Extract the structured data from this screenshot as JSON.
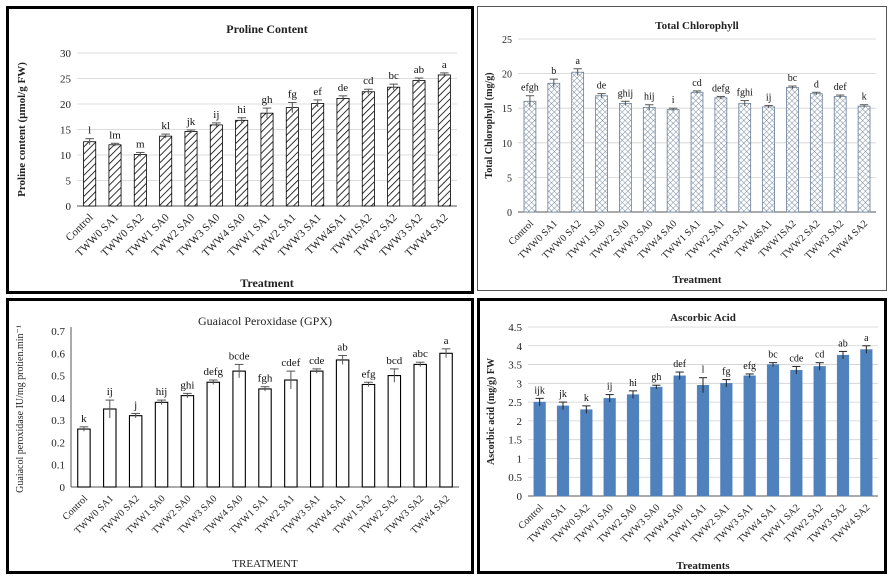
{
  "chart_data": [
    {
      "type": "bar",
      "title": "Proline Content",
      "ylabel": "Proline content (µmol/g FW)",
      "xlabel": "Treatment",
      "ylim": [
        0,
        30
      ],
      "yticks": [
        0,
        5,
        10,
        15,
        20,
        25,
        30
      ],
      "grid": true,
      "pattern": "hatch",
      "categories": [
        "Control",
        "TWW0 SA1",
        "TWW0 SA2",
        "TWW1 SA0",
        "TWW2 SA0",
        "TWW3 SA0",
        "TWW4 SA0",
        "TWW1 SA1",
        "TWW2 SA1",
        "TWW3 SA1",
        "TWW4SA1",
        "TWW1SA2",
        "TWW2 SA2",
        "TWW3 SA2",
        "TWW4 SA2"
      ],
      "values": [
        12.6,
        12.0,
        10.1,
        13.7,
        14.6,
        15.9,
        16.8,
        18.2,
        19.3,
        20.1,
        21.1,
        22.4,
        23.3,
        24.6,
        25.7
      ],
      "errors": [
        0.6,
        0.3,
        0.4,
        0.4,
        0.3,
        0.4,
        0.5,
        1.0,
        1.0,
        0.7,
        0.5,
        0.5,
        0.6,
        0.5,
        0.4
      ],
      "labels": [
        "l",
        "lm",
        "m",
        "kl",
        "jk",
        "ij",
        "hi",
        "gh",
        "fg",
        "ef",
        "de",
        "cd",
        "bc",
        "ab",
        "a"
      ]
    },
    {
      "type": "bar",
      "title": "Total Chlorophyll",
      "ylabel": "Total Chlorophyll (mg/g)",
      "xlabel": "Treatment",
      "ylim": [
        0,
        25
      ],
      "yticks": [
        0,
        5,
        10,
        15,
        20,
        25
      ],
      "grid": true,
      "pattern": "crosshatch",
      "categories": [
        "Control",
        "TWW0 SA1",
        "TWW0 SA2",
        "TWW1 SA0",
        "TWW2 SA0",
        "TWW3 SA0",
        "TWW4 SA0",
        "TWW1 SA1",
        "TWW2 SA1",
        "TWW3 SA1",
        "TWW4SA1",
        "TWW1SA2",
        "TWW2 SA2",
        "TWW3 SA2",
        "TWW4 SA2"
      ],
      "values": [
        16.0,
        18.6,
        20.2,
        16.8,
        15.7,
        15.1,
        14.8,
        17.3,
        16.5,
        15.7,
        15.2,
        18.0,
        17.1,
        16.7,
        15.3
      ],
      "errors": [
        0.8,
        0.6,
        0.5,
        0.3,
        0.3,
        0.4,
        0.2,
        0.2,
        0.2,
        0.4,
        0.2,
        0.2,
        0.2,
        0.2,
        0.2
      ],
      "labels": [
        "efgh",
        "b",
        "a",
        "de",
        "ghij",
        "hij",
        "i",
        "cd",
        "defg",
        "fghi",
        "ij",
        "bc",
        "d",
        "def",
        "k"
      ]
    },
    {
      "type": "bar",
      "title": "Guaiacol Peroxidase (GPX)",
      "ylabel": "Guaiacol peroxidase IU/mg protien.min⁻¹",
      "xlabel": "TREATMENT",
      "ylim": [
        0,
        0.7
      ],
      "yticks": [
        0,
        0.1,
        0.2,
        0.3,
        0.4,
        0.5,
        0.6,
        0.7
      ],
      "grid": false,
      "pattern": "outline",
      "categories": [
        "Control",
        "TWW0 SA1",
        "TWW0 SA2",
        "TWW1 SA0",
        "TWW2 SA0",
        "TWW3 SA0",
        "TWW4 SA0",
        "TWW1 SA1",
        "TWW2 SA1",
        "TWW3 SA1",
        "TWW4 SA1",
        "TWW1 SA2",
        "TWW2 SA2",
        "TWW3 SA2",
        "TWW4 SA2"
      ],
      "values": [
        0.26,
        0.35,
        0.32,
        0.38,
        0.41,
        0.47,
        0.52,
        0.44,
        0.48,
        0.52,
        0.57,
        0.46,
        0.5,
        0.55,
        0.6
      ],
      "errors": [
        0.01,
        0.04,
        0.01,
        0.01,
        0.01,
        0.01,
        0.03,
        0.01,
        0.04,
        0.01,
        0.02,
        0.01,
        0.03,
        0.01,
        0.02
      ],
      "labels": [
        "k",
        "ij",
        "j",
        "hij",
        "ghi",
        "defg",
        "bcde",
        "fgh",
        "cdef",
        "cde",
        "ab",
        "efg",
        "bcd",
        "abc",
        "a"
      ]
    },
    {
      "type": "bar",
      "title": "Ascorbic Acid",
      "ylabel": "Ascorbic acid (mg/g) FW",
      "xlabel": "Treatments",
      "ylim": [
        0,
        4.5
      ],
      "yticks": [
        0,
        0.5,
        1,
        1.5,
        2,
        2.5,
        3,
        3.5,
        4,
        4.5
      ],
      "grid": true,
      "color": "#4f81bd",
      "categories": [
        "Control",
        "TWW0 SA1",
        "TWW0 SA2",
        "TWW1 SA0",
        "TWW2 SA0",
        "TWW3 SA0",
        "TWW4 SA0",
        "TWW1 SA1",
        "TWW2 SA1",
        "TWW3 SA1",
        "TWW4 SA1",
        "TWW1 SA2",
        "TWW2 SA2",
        "TWW3 SA2",
        "TWW4 SA2"
      ],
      "values": [
        2.5,
        2.4,
        2.3,
        2.6,
        2.7,
        2.9,
        3.2,
        2.95,
        3.0,
        3.2,
        3.5,
        3.35,
        3.45,
        3.75,
        3.9
      ],
      "errors": [
        0.1,
        0.1,
        0.1,
        0.1,
        0.1,
        0.05,
        0.1,
        0.2,
        0.1,
        0.05,
        0.05,
        0.1,
        0.1,
        0.1,
        0.1
      ],
      "labels": [
        "ijk",
        "jk",
        "k",
        "ij",
        "hi",
        "gh",
        "def",
        "l",
        "fg",
        "efg",
        "bc",
        "cde",
        "cd",
        "ab",
        "a"
      ]
    }
  ]
}
